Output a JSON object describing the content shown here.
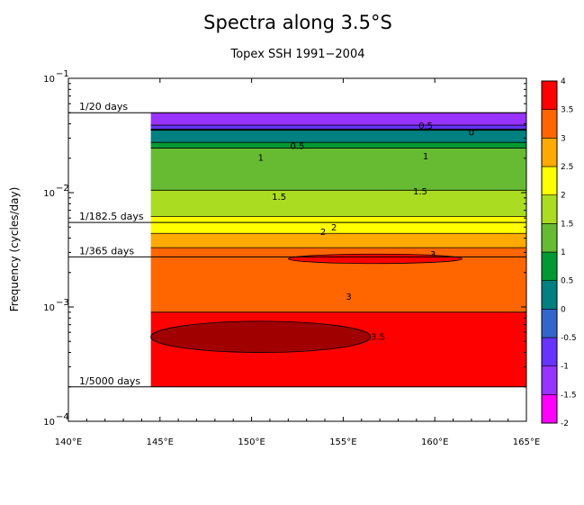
{
  "chart_data": {
    "type": "heatmap",
    "title": "Spectra along 3.5°S",
    "subtitle": "Topex SSH 1991−2004",
    "xlabel": "",
    "ylabel": "Frequency (cycles/day)",
    "xlim": [
      140,
      165
    ],
    "ylim": [
      0.0001,
      0.1
    ],
    "yscale": "log",
    "x_ticks": [
      140,
      145,
      150,
      155,
      160,
      165
    ],
    "x_tick_labels": [
      "140°E",
      "145°E",
      "150°E",
      "155°E",
      "160°E",
      "165°E"
    ],
    "y_ticks": [
      0.0001,
      0.001,
      0.01,
      0.1
    ],
    "y_tick_labels": [
      {
        "base": "10",
        "exp": "−4"
      },
      {
        "base": "10",
        "exp": "−3"
      },
      {
        "base": "10",
        "exp": "−2"
      },
      {
        "base": "10",
        "exp": "−1"
      }
    ],
    "data_x_range": [
      144.5,
      165
    ],
    "data_y_range": [
      0.0002,
      0.05
    ],
    "reference_lines": [
      {
        "label": "1/20 days",
        "freq": 0.05
      },
      {
        "label": "1/182.5 days",
        "freq": 0.005479
      },
      {
        "label": "1/365 days",
        "freq": 0.00274
      },
      {
        "label": "1/5000 days",
        "freq": 0.0002
      }
    ],
    "bands": [
      {
        "x": [
          144.5,
          165
        ],
        "freq": [
          0.0389,
          0.05
        ],
        "level": -1.25
      },
      {
        "x": [
          144.5,
          165
        ],
        "freq": [
          0.0355,
          0.0389
        ],
        "level": -0.75
      },
      {
        "x": [
          144.5,
          165
        ],
        "freq": [
          0.0275,
          0.0355
        ],
        "level": 0.25
      },
      {
        "x": [
          144.5,
          165
        ],
        "freq": [
          0.0245,
          0.0275
        ],
        "level": 0.75
      },
      {
        "x": [
          144.5,
          165
        ],
        "freq": [
          0.0105,
          0.0245
        ],
        "level": 1.25
      },
      {
        "x": [
          144.5,
          165
        ],
        "freq": [
          0.0062,
          0.0105
        ],
        "level": 1.75
      },
      {
        "x": [
          144.5,
          165
        ],
        "freq": [
          0.0044,
          0.0062
        ],
        "level": 2.25
      },
      {
        "x": [
          144.5,
          165
        ],
        "freq": [
          0.0033,
          0.0044
        ],
        "level": 2.75
      },
      {
        "x": [
          144.5,
          165
        ],
        "freq": [
          0.0009,
          0.0033
        ],
        "level": 3.25
      },
      {
        "x": [
          144.5,
          165
        ],
        "freq": [
          0.0002,
          0.0009
        ],
        "level": 3.75
      },
      {
        "x": [
          152,
          161.5
        ],
        "freq": [
          0.0024,
          0.0029
        ],
        "level": 3.75
      },
      {
        "x": [
          144.5,
          156.5
        ],
        "freq": [
          0.0004,
          0.00075
        ],
        "level": 4.25
      }
    ],
    "contour_labels": [
      {
        "text": "0.5",
        "x": 159.5,
        "freq": 0.039
      },
      {
        "text": "0",
        "x": 162,
        "freq": 0.034
      },
      {
        "text": "0.5",
        "x": 152.5,
        "freq": 0.026
      },
      {
        "text": "1",
        "x": 150.5,
        "freq": 0.0205
      },
      {
        "text": "1",
        "x": 159.5,
        "freq": 0.021
      },
      {
        "text": "1.5",
        "x": 151.5,
        "freq": 0.0093
      },
      {
        "text": "1.5",
        "x": 159.2,
        "freq": 0.0104
      },
      {
        "text": "2",
        "x": 154.5,
        "freq": 0.00502
      },
      {
        "text": "2",
        "x": 153.9,
        "freq": 0.00458
      },
      {
        "text": "3",
        "x": 159.9,
        "freq": 0.00291
      },
      {
        "text": "3",
        "x": 155.3,
        "freq": 0.00124
      },
      {
        "text": "3.5",
        "x": 156.9,
        "freq": 0.000555
      }
    ],
    "colorbar": {
      "levels": [
        -2,
        -1.5,
        -1,
        -0.5,
        0,
        0.5,
        1,
        1.5,
        2,
        2.5,
        3,
        3.5,
        4
      ],
      "labels": [
        "-2",
        "-1.5",
        "-1",
        "-0.5",
        "0",
        "0.5",
        "1",
        "1.5",
        "2",
        "2.5",
        "3",
        "3.5",
        "4"
      ],
      "colors": [
        "#ff00ff",
        "#9933ff",
        "#6633ff",
        "#3366cc",
        "#008080",
        "#009933",
        "#66bb33",
        "#aadd22",
        "#ffff00",
        "#ffaa00",
        "#ff6600",
        "#ff0000",
        "#a00000"
      ]
    }
  }
}
